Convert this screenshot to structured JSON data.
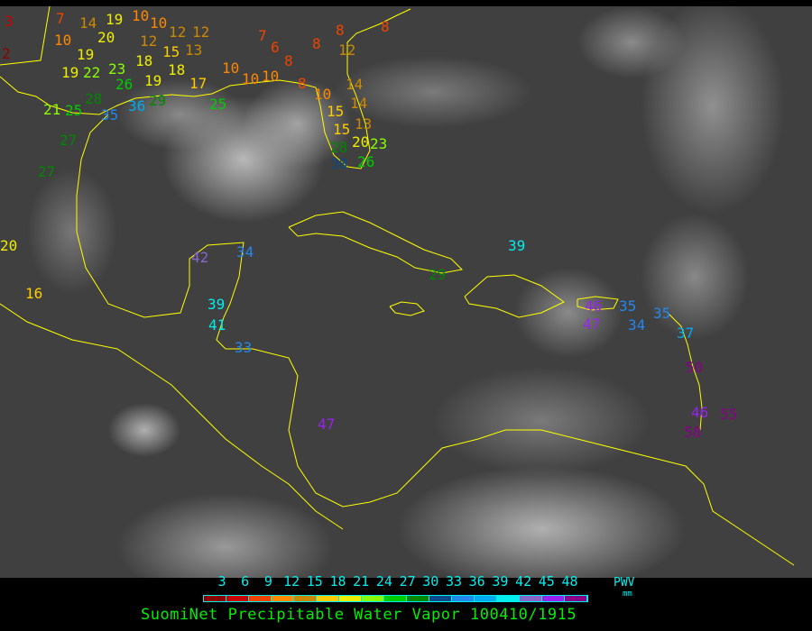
{
  "title": "SuomiNet Precipitable Water Vapor 100410/1915",
  "legend": {
    "unit_label": "PWV",
    "unit": "mm",
    "ticks": [
      "3",
      "6",
      "9",
      "12",
      "15",
      "18",
      "21",
      "24",
      "27",
      "30",
      "33",
      "36",
      "39",
      "42",
      "45",
      "48"
    ],
    "colors": [
      "#8b0000",
      "#cc0000",
      "#ee4400",
      "#ff8800",
      "#cc8800",
      "#ffcc00",
      "#eeee00",
      "#88ff00",
      "#00cc00",
      "#008800",
      "#0a4a8a",
      "#2288ee",
      "#00aaee",
      "#00eeee",
      "#8866cc",
      "#9922ee",
      "#880088"
    ]
  },
  "coastline_color": "#ffff00",
  "stations": [
    "3",
    "2",
    "7",
    "10",
    "14",
    "19",
    "20",
    "10",
    "10",
    "12",
    "12",
    "12",
    "19",
    "19",
    "22",
    "23",
    "26",
    "18",
    "15",
    "13",
    "19",
    "18",
    "17",
    "25",
    "29",
    "36",
    "35",
    "21",
    "25",
    "28",
    "10",
    "10",
    "10",
    "7",
    "6",
    "8",
    "8",
    "12",
    "8",
    "8",
    "8",
    "10",
    "14",
    "15",
    "14",
    "15",
    "13",
    "20",
    "23",
    "28",
    "30",
    "26",
    "27",
    "27",
    "20",
    "16",
    "42",
    "34",
    "39",
    "29",
    "39",
    "41",
    "33",
    "47",
    "46",
    "47",
    "35",
    "34",
    "35",
    "37",
    "50",
    "46",
    "55",
    "58"
  ]
}
